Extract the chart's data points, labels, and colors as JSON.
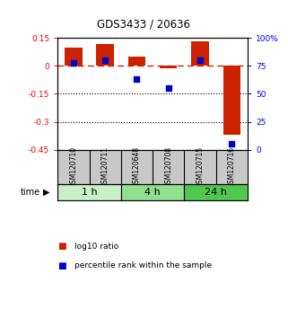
{
  "title": "GDS3433 / 20636",
  "samples": [
    "GSM120710",
    "GSM120711",
    "GSM120648",
    "GSM120708",
    "GSM120715",
    "GSM120716"
  ],
  "log10_ratio": [
    0.1,
    0.12,
    0.05,
    -0.01,
    0.135,
    -0.37
  ],
  "percentile_rank": [
    78,
    80,
    63,
    55,
    80,
    5
  ],
  "ylim_left": [
    -0.45,
    0.15
  ],
  "ylim_right": [
    0,
    100
  ],
  "yticks_left": [
    0.15,
    0.0,
    -0.15,
    -0.3,
    -0.45
  ],
  "ytick_labels_left": [
    "0.15",
    "0",
    "-0.15",
    "-0.3",
    "-0.45"
  ],
  "yticks_right": [
    100,
    75,
    50,
    25,
    0
  ],
  "ytick_labels_right": [
    "100%",
    "75",
    "50",
    "25",
    "0"
  ],
  "groups": [
    {
      "label": "1 h",
      "indices": [
        0,
        1
      ],
      "color": "#c8f0c8"
    },
    {
      "label": "4 h",
      "indices": [
        2,
        3
      ],
      "color": "#90e090"
    },
    {
      "label": "24 h",
      "indices": [
        4,
        5
      ],
      "color": "#50c850"
    }
  ],
  "bar_color": "#cc2200",
  "square_color": "#0000cc",
  "zero_line_color": "#cc2200",
  "dotted_line_color": "#000000",
  "background_plot": "#ffffff",
  "background_samples": "#c8c8c8",
  "time_label": "time",
  "legend_log10": "log10 ratio",
  "legend_pct": "percentile rank within the sample",
  "bar_width": 0.55
}
